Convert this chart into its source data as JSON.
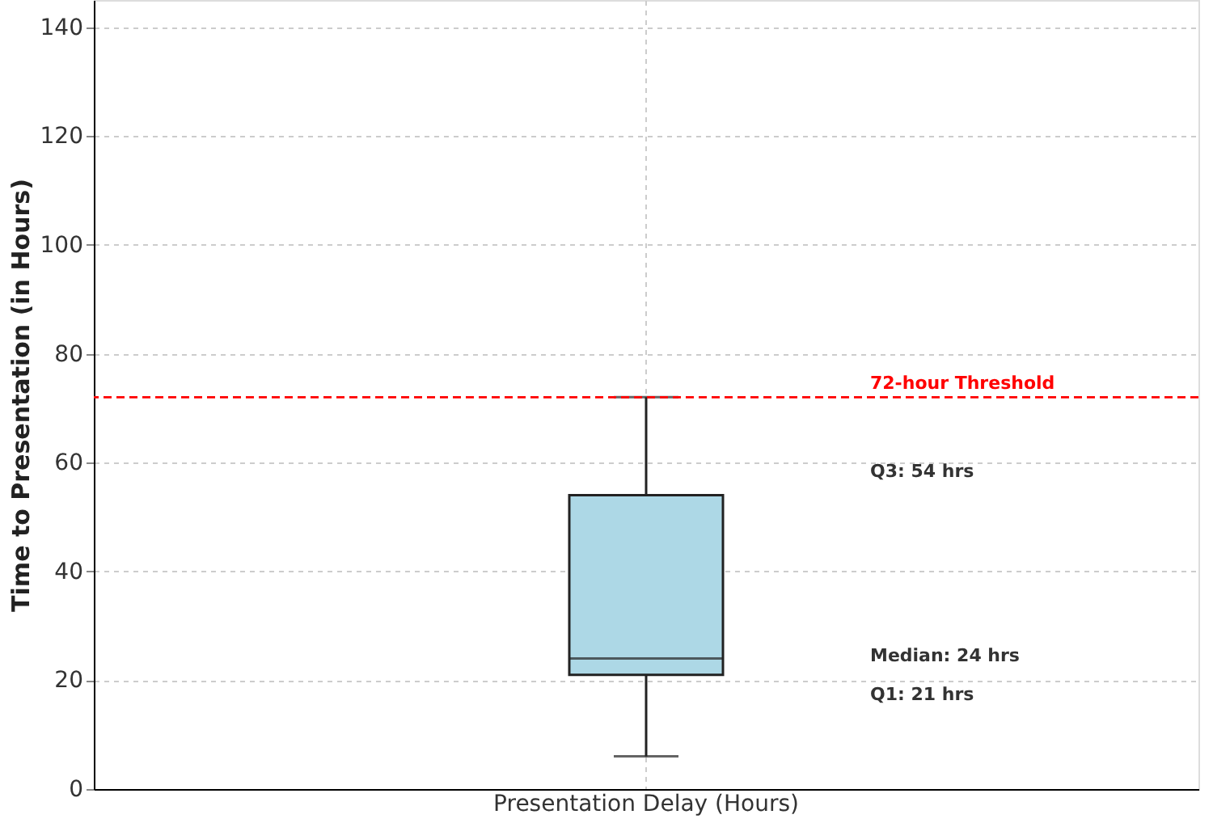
{
  "chart_data": {
    "type": "box",
    "categories": [
      "Presentation Delay (Hours)"
    ],
    "ylabel": "Time to Presentation (in Hours)",
    "boxes": [
      {
        "low": 6,
        "q1": 21,
        "median": 24,
        "q3": 54,
        "high": 72
      }
    ],
    "color": "#add8e6",
    "ylim": [
      0,
      145
    ],
    "yticks": [
      0,
      20,
      40,
      60,
      80,
      100,
      120,
      140
    ],
    "grid": true,
    "ref_lines": [
      {
        "axis": "y",
        "value": 72,
        "label": "72-hour Threshold",
        "color": "#ff0000",
        "line_style": "dashed"
      }
    ],
    "annotations": [
      "Q3: 54 hrs",
      "Median: 24 hrs",
      "Q1: 21 hrs"
    ]
  }
}
